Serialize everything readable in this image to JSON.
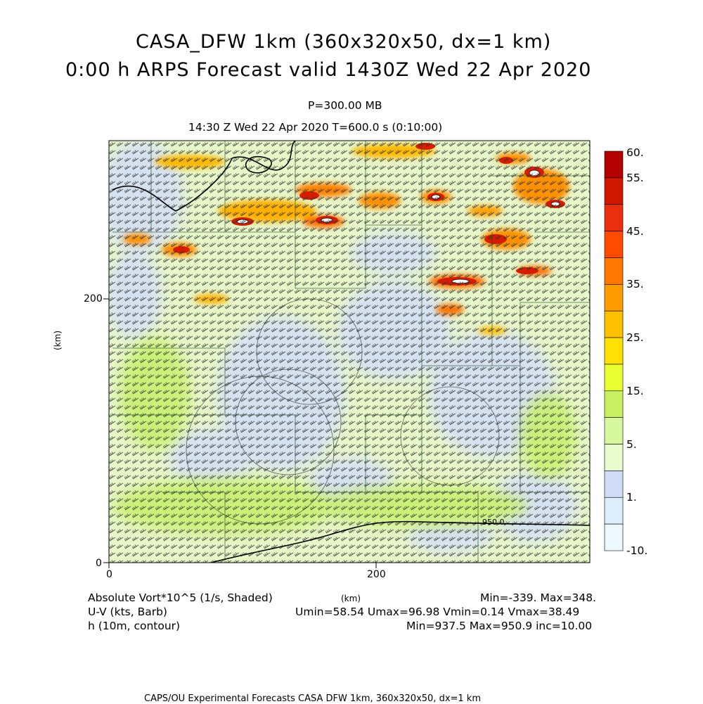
{
  "title_line1": "CASA_DFW 1km (360x320x50, dx=1 km)",
  "title_line2": "0:00 h ARPS Forecast valid 1430Z Wed 22 Apr 2020",
  "level": "P=300.00 MB",
  "time_line": "14:30 Z Wed 22 Apr 2020    T=600.0 s (0:10:00)",
  "axes": {
    "x_ticks": [
      "0",
      "200"
    ],
    "y_ticks": [
      "0",
      "200"
    ],
    "x_label": "(km)",
    "y_label": "(km)"
  },
  "colorbar": {
    "labels": [
      "60.",
      "55.",
      "45.",
      "35.",
      "25.",
      "15.",
      "5.",
      "1.",
      "-10."
    ],
    "colors": [
      "#b30000",
      "#d01800",
      "#e83010",
      "#ff4a00",
      "#ff7800",
      "#ff9a00",
      "#ffc000",
      "#ffe000",
      "#e8ff30",
      "#c8f060",
      "#d8f8a0",
      "#e8fcd0",
      "#d0dcf8",
      "#dceefc",
      "#eef8ff"
    ]
  },
  "legend": {
    "var1": "Absolute Vort*10^5 (1/s, Shaded)",
    "var2": "U-V (kts, Barb)",
    "var3": "h (10m, contour)",
    "var1_stats": "Min=-339. Max=348.",
    "var2_stats": "Umin=58.54 Umax=96.98 Vmin=0.14 Vmax=38.49",
    "var3_stats": "Min=937.5 Max=950.9 inc=10.00",
    "contour_label": "950.0"
  },
  "footer": "CAPS/OU Experimental Forecasts  CASA DFW 1km, 360x320x50, dx=1 km"
}
